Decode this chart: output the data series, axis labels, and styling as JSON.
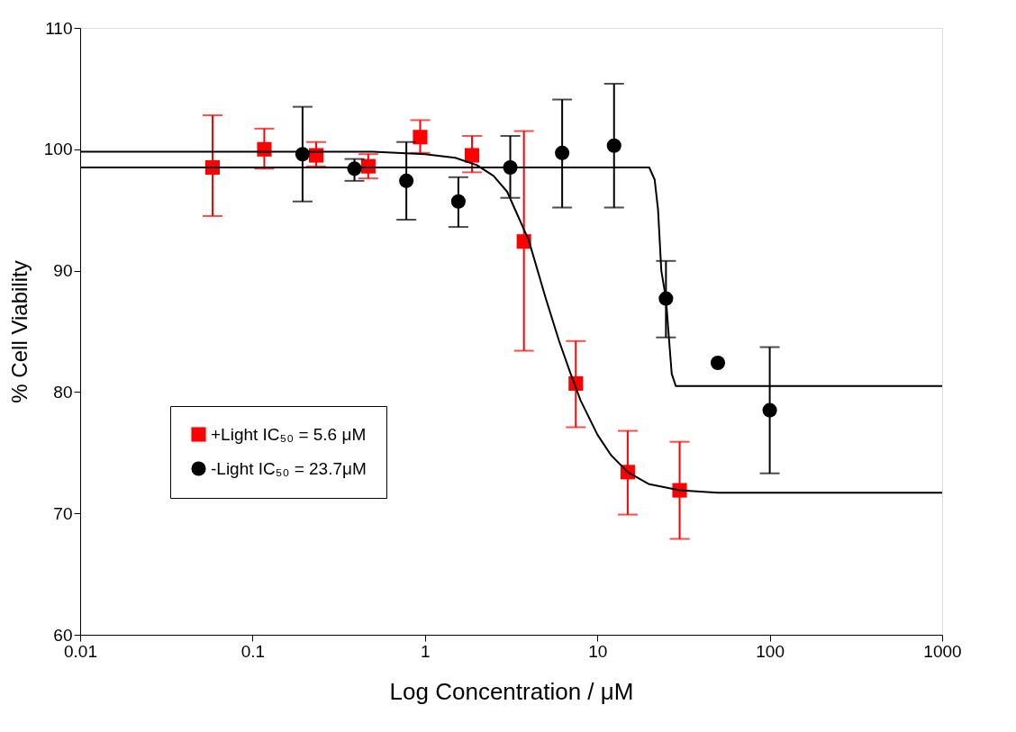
{
  "chart_data": {
    "type": "scatter",
    "xlabel": "Log Concentration / μM",
    "ylabel": "% Cell Viability",
    "log": "x",
    "xlim": [
      0.01,
      1000
    ],
    "xticks": [
      0.01,
      0.1,
      1,
      10,
      100,
      1000
    ],
    "ylim": [
      60,
      110
    ],
    "yticks": [
      60,
      70,
      80,
      90,
      100,
      110
    ],
    "grid": false,
    "legend": "left",
    "series": [
      {
        "name": "+Light IC₅₀ = 5.6 μM",
        "type": "scatter",
        "marker": "square",
        "color": "#ff0000",
        "x": [
          0.0586,
          0.117,
          0.234,
          0.469,
          0.938,
          1.875,
          3.75,
          7.5,
          15,
          30
        ],
        "values": [
          98.5,
          100.0,
          99.5,
          98.6,
          101.0,
          99.5,
          92.4,
          80.7,
          73.4,
          71.9
        ],
        "errors": [
          [
            94.5,
            102.8
          ],
          [
            98.4,
            101.7
          ],
          [
            98.6,
            100.6
          ],
          [
            97.6,
            99.6
          ],
          [
            99.7,
            102.4
          ],
          [
            98.1,
            101.1
          ],
          [
            83.4,
            101.5
          ],
          [
            77.1,
            84.2
          ],
          [
            69.9,
            76.8
          ],
          [
            67.9,
            75.9
          ]
        ]
      },
      {
        "name": "-Light IC₅₀ = 23.7μM",
        "type": "scatter",
        "marker": "circle",
        "color": "#000000",
        "x": [
          0.195,
          0.39,
          0.78,
          1.5625,
          3.125,
          6.25,
          12.5,
          25,
          50,
          100
        ],
        "values": [
          99.6,
          98.4,
          97.4,
          95.7,
          98.5,
          99.7,
          100.3,
          87.7,
          82.4,
          78.5
        ],
        "errors": [
          [
            95.7,
            103.5
          ],
          [
            97.4,
            99.2
          ],
          [
            94.2,
            100.6
          ],
          [
            93.6,
            97.7
          ],
          [
            96.0,
            101.1
          ],
          [
            95.2,
            104.1
          ],
          [
            95.2,
            105.4
          ],
          [
            84.5,
            90.8
          ],
          null,
          [
            73.3,
            83.7
          ]
        ]
      },
      {
        "type": "line",
        "marker": "none",
        "color": "#000000",
        "x": [
          0.01,
          0.5,
          1,
          1.5,
          2,
          2.5,
          3,
          4,
          5,
          6,
          7,
          8,
          10,
          12,
          15,
          20,
          30,
          50,
          1000
        ],
        "values": [
          99.8,
          99.8,
          99.6,
          99.3,
          98.7,
          97.8,
          96.5,
          92.5,
          87.8,
          84.2,
          81.5,
          79.3,
          76.5,
          74.8,
          73.4,
          72.4,
          71.9,
          71.7,
          71.7
        ]
      },
      {
        "type": "line",
        "marker": "none",
        "color": "#000000",
        "x": [
          0.01,
          20,
          21.5,
          22.5,
          23.5,
          25,
          26,
          27,
          28.5,
          1000
        ],
        "values": [
          98.5,
          98.5,
          97.5,
          95,
          90,
          87.7,
          84.5,
          81.5,
          80.5,
          80.5
        ]
      }
    ]
  }
}
